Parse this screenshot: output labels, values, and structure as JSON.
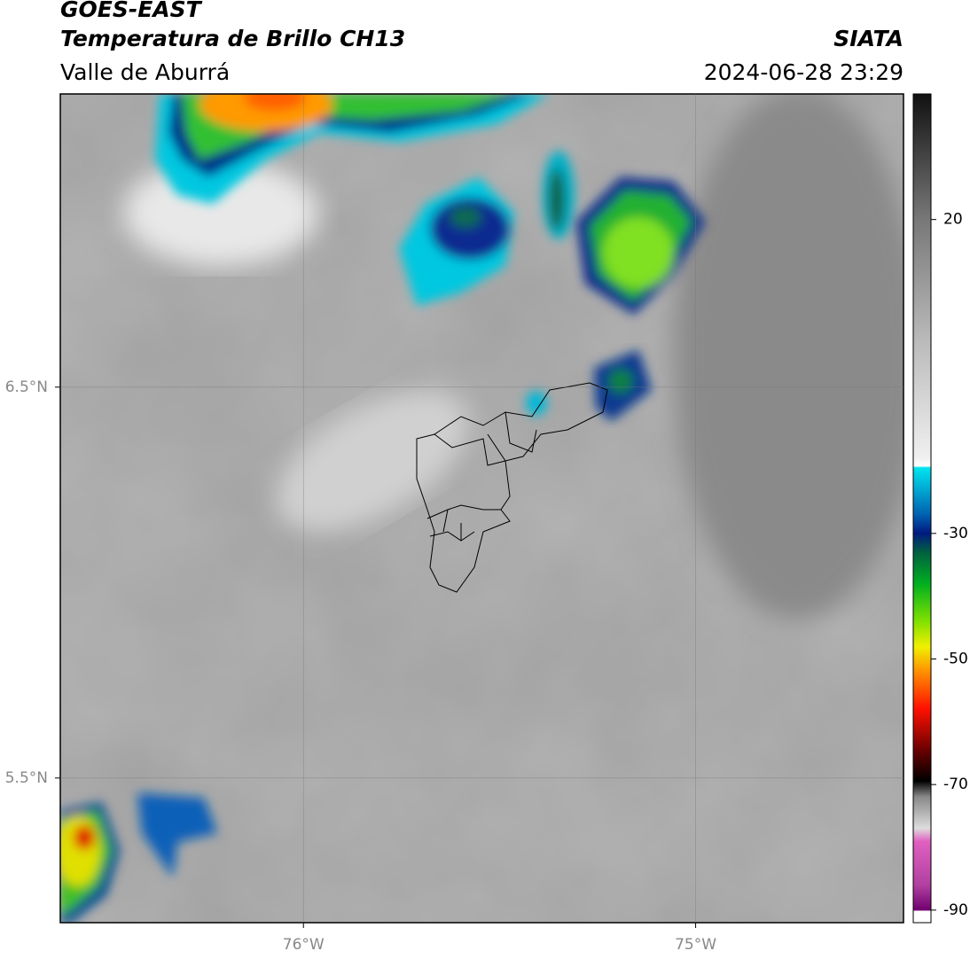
{
  "header": {
    "title": "GOES-EAST",
    "subtitle": "Temperatura de Brillo CH13",
    "region": "Valle de Aburrá",
    "source": "SIATA",
    "datetime": "2024-06-28 23:29"
  },
  "map": {
    "lonlim": [
      -76.62,
      -74.47
    ],
    "latlim": [
      5.13,
      7.25
    ],
    "lon_ticks": [
      {
        "value": -76,
        "label": "76°W"
      },
      {
        "value": -75,
        "label": "75°W"
      }
    ],
    "lat_ticks": [
      {
        "value": 6.5,
        "label": "6.5°N"
      },
      {
        "value": 5.5,
        "label": "5.5°N"
      }
    ]
  },
  "colorbar": {
    "lim": [
      -92,
      40
    ],
    "ticks": [
      20,
      -30,
      -50,
      -70,
      -90
    ]
  }
}
